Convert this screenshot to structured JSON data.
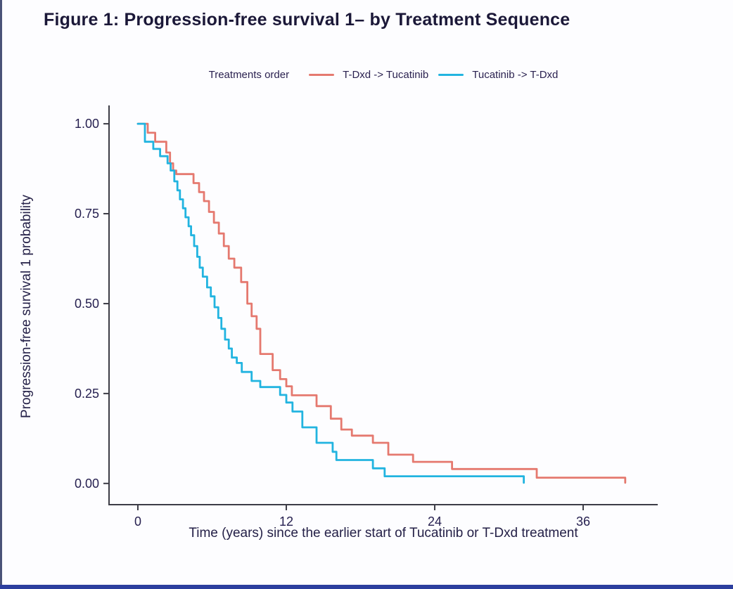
{
  "page": {
    "title": "Figure 1: Progression-free survival 1– by Treatment Sequence",
    "background": "#fdfdff",
    "left_edge_color": "#4a5378",
    "bottom_edge_color": "#2c3f9e"
  },
  "legend": {
    "title": "Treatments order",
    "items": [
      {
        "label": "T-Dxd -> Tucatinib",
        "color": "#e5796f"
      },
      {
        "label": "Tucatinib -> T-Dxd",
        "color": "#22b4e0"
      }
    ]
  },
  "chart_data": {
    "type": "line",
    "subtype": "kaplan-meier-step",
    "title": "",
    "xlabel": "Time (years) since the earlier start of Tucatinib or T-Dxd treatment",
    "ylabel": "Progression-free survival 1 probability",
    "xlim": [
      -2.33,
      42.03
    ],
    "ylim": [
      -0.059,
      1.051
    ],
    "grid": false,
    "legend_position": "top-center",
    "axis_color": "#3c3c46",
    "text_color": "#262050",
    "x_ticks": [
      {
        "value": 0,
        "label": "0"
      },
      {
        "value": 12,
        "label": "12"
      },
      {
        "value": 24,
        "label": "24"
      },
      {
        "value": 36,
        "label": "36"
      }
    ],
    "y_ticks": [
      {
        "value": 0.0,
        "label": "0.00"
      },
      {
        "value": 0.25,
        "label": "0.25"
      },
      {
        "value": 0.5,
        "label": "0.50"
      },
      {
        "value": 0.75,
        "label": "0.75"
      },
      {
        "value": 1.0,
        "label": "1.00"
      }
    ],
    "series": [
      {
        "name": "T-Dxd -> Tucatinib",
        "color": "#e5796f",
        "points": [
          [
            0,
            1.0
          ],
          [
            0.8,
            0.975
          ],
          [
            1.4,
            0.95
          ],
          [
            2.3,
            0.92
          ],
          [
            2.6,
            0.89
          ],
          [
            2.85,
            0.87
          ],
          [
            3.1,
            0.86
          ],
          [
            4.5,
            0.835
          ],
          [
            4.95,
            0.81
          ],
          [
            5.35,
            0.785
          ],
          [
            5.75,
            0.755
          ],
          [
            6.15,
            0.725
          ],
          [
            6.55,
            0.695
          ],
          [
            6.95,
            0.66
          ],
          [
            7.35,
            0.625
          ],
          [
            7.8,
            0.6
          ],
          [
            8.35,
            0.56
          ],
          [
            8.85,
            0.5
          ],
          [
            9.2,
            0.465
          ],
          [
            9.6,
            0.43
          ],
          [
            9.9,
            0.36
          ],
          [
            10.9,
            0.315
          ],
          [
            11.5,
            0.29
          ],
          [
            12.0,
            0.27
          ],
          [
            12.45,
            0.245
          ],
          [
            14.45,
            0.215
          ],
          [
            15.6,
            0.18
          ],
          [
            16.45,
            0.15
          ],
          [
            17.3,
            0.133
          ],
          [
            19.0,
            0.113
          ],
          [
            20.25,
            0.08
          ],
          [
            22.25,
            0.06
          ],
          [
            25.4,
            0.04
          ],
          [
            32.25,
            0.016
          ],
          [
            39.4,
            0.002
          ]
        ]
      },
      {
        "name": "Tucatinib -> T-Dxd",
        "color": "#22b4e0",
        "points": [
          [
            0,
            1.0
          ],
          [
            0.57,
            0.95
          ],
          [
            1.25,
            0.93
          ],
          [
            1.8,
            0.91
          ],
          [
            2.4,
            0.89
          ],
          [
            2.65,
            0.87
          ],
          [
            2.95,
            0.84
          ],
          [
            3.2,
            0.815
          ],
          [
            3.4,
            0.79
          ],
          [
            3.65,
            0.765
          ],
          [
            3.85,
            0.74
          ],
          [
            4.1,
            0.715
          ],
          [
            4.3,
            0.69
          ],
          [
            4.55,
            0.66
          ],
          [
            4.8,
            0.63
          ],
          [
            5.0,
            0.6
          ],
          [
            5.25,
            0.575
          ],
          [
            5.6,
            0.545
          ],
          [
            5.9,
            0.52
          ],
          [
            6.2,
            0.49
          ],
          [
            6.5,
            0.46
          ],
          [
            6.75,
            0.43
          ],
          [
            7.05,
            0.4
          ],
          [
            7.35,
            0.375
          ],
          [
            7.6,
            0.35
          ],
          [
            8.0,
            0.335
          ],
          [
            8.4,
            0.31
          ],
          [
            9.2,
            0.285
          ],
          [
            9.9,
            0.268
          ],
          [
            11.5,
            0.246
          ],
          [
            12.0,
            0.225
          ],
          [
            12.5,
            0.2
          ],
          [
            13.3,
            0.156
          ],
          [
            14.45,
            0.113
          ],
          [
            15.75,
            0.088
          ],
          [
            16.05,
            0.065
          ],
          [
            19.0,
            0.042
          ],
          [
            19.95,
            0.02
          ],
          [
            31.2,
            0.002
          ]
        ]
      }
    ]
  }
}
